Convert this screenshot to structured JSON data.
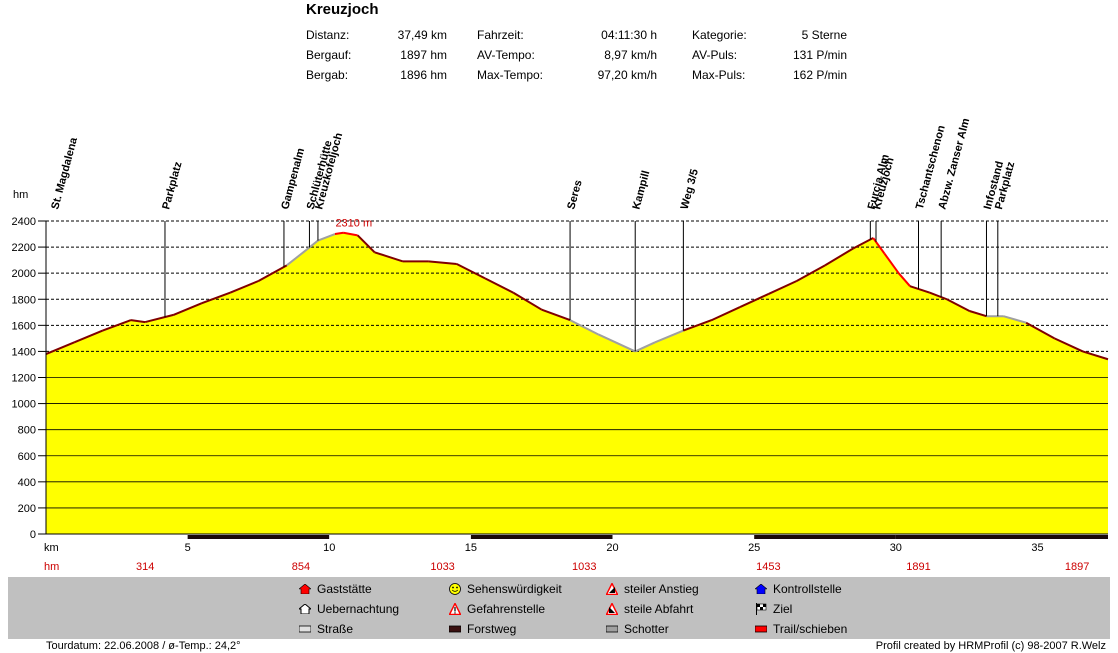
{
  "title": "Kreuzjoch",
  "stats": [
    {
      "label": "Distanz:",
      "value": "37,49 km"
    },
    {
      "label": "Bergauf:",
      "value": "1897 hm"
    },
    {
      "label": "Bergab:",
      "value": "1896 hm"
    },
    {
      "label": "Fahrzeit:",
      "value": "04:11:30 h"
    },
    {
      "label": "AV-Tempo:",
      "value": "8,97 km/h"
    },
    {
      "label": "Max-Tempo:",
      "value": "97,20 km/h"
    },
    {
      "label": "Kategorie:",
      "value": "5 Sterne"
    },
    {
      "label": "AV-Puls:",
      "value": "131 P/min"
    },
    {
      "label": "Max-Puls:",
      "value": "162 P/min"
    }
  ],
  "chart_data": {
    "type": "area",
    "ylabel": "hm",
    "xlabel": "km",
    "xlim": [
      0,
      37.49
    ],
    "ylim": [
      0,
      2400
    ],
    "yticks": [
      0,
      200,
      400,
      600,
      800,
      1000,
      1200,
      1400,
      1600,
      1800,
      2000,
      2200,
      2400
    ],
    "xticks": [
      5,
      10,
      15,
      20,
      25,
      30,
      35
    ],
    "grid_lines": [
      1400,
      1600,
      1800,
      2000,
      2200,
      2400
    ],
    "profile_x": [
      0,
      1,
      2,
      3,
      3.5,
      4.5,
      5.5,
      6.5,
      7.5,
      8.5,
      9.2,
      9.6,
      10.2,
      10.5,
      11,
      11.6,
      12.6,
      13.5,
      14.5,
      15.5,
      16.5,
      17.5,
      18.5,
      19.5,
      20.8,
      21.5,
      22.5,
      23.5,
      24.5,
      25.5,
      26.5,
      27.5,
      28.5,
      29.2,
      29.6,
      30.1,
      30.5,
      31.2,
      31.8,
      32.6,
      33.2,
      33.8,
      34.6,
      35.6,
      36.6,
      37.49
    ],
    "profile_y": [
      1380,
      1470,
      1560,
      1640,
      1625,
      1680,
      1770,
      1850,
      1940,
      2060,
      2180,
      2250,
      2300,
      2310,
      2290,
      2160,
      2090,
      2090,
      2070,
      1960,
      1850,
      1720,
      1640,
      1530,
      1400,
      1470,
      1560,
      1640,
      1740,
      1840,
      1940,
      2060,
      2190,
      2270,
      2150,
      2000,
      1900,
      1850,
      1800,
      1710,
      1670,
      1670,
      1620,
      1500,
      1400,
      1340
    ],
    "max_label": "2310 m",
    "max_at": [
      10.5,
      2310
    ],
    "waypoints": [
      {
        "name": "St. Magdalena",
        "km": 0
      },
      {
        "name": "Parkplatz",
        "km": 4.2
      },
      {
        "name": "Gampenalm",
        "km": 8.4
      },
      {
        "name": "Schlüterhütte",
        "km": 9.3
      },
      {
        "name": "Kreuzkofeljoch",
        "km": 9.6
      },
      {
        "name": "Seres",
        "km": 18.5
      },
      {
        "name": "Kampill",
        "km": 20.8
      },
      {
        "name": "Weg 3/5",
        "km": 22.5
      },
      {
        "name": "Furcia Alm",
        "km": 29.1
      },
      {
        "name": "Kreuzjoch",
        "km": 29.3
      },
      {
        "name": "Tschantschenon",
        "km": 30.8
      },
      {
        "name": "Abzw. Zanser Alm",
        "km": 31.6
      },
      {
        "name": "Infostand",
        "km": 33.2
      },
      {
        "name": "Parkplatz",
        "km": 33.6
      }
    ],
    "hm_row_label": "hm",
    "hm_row": [
      {
        "km": 3.5,
        "value": "314"
      },
      {
        "km": 9,
        "value": "854"
      },
      {
        "km": 14,
        "value": "1033"
      },
      {
        "km": 19,
        "value": "1033"
      },
      {
        "km": 25.5,
        "value": "1453"
      },
      {
        "km": 30.8,
        "value": "1891"
      },
      {
        "km": 36.4,
        "value": "1897"
      }
    ],
    "surface": [
      {
        "from": 0,
        "to": 5,
        "type": "Straße"
      },
      {
        "from": 5,
        "to": 10,
        "type": "Forstweg"
      },
      {
        "from": 10,
        "to": 15,
        "type": "Straße"
      },
      {
        "from": 15,
        "to": 20,
        "type": "Forstweg"
      },
      {
        "from": 20,
        "to": 25,
        "type": "Straße"
      },
      {
        "from": 25,
        "to": 30,
        "type": "Forstweg"
      },
      {
        "from": 30,
        "to": 37.49,
        "type": "Forstweg"
      }
    ],
    "colors": {
      "fill": "#ffff00",
      "line": "#800000",
      "trail": "#ff0000",
      "road": "#a0a0a0"
    }
  },
  "legend": [
    {
      "label": "Gaststätte",
      "icon": "house-red-icon"
    },
    {
      "label": "Uebernachtung",
      "icon": "house-outline-icon"
    },
    {
      "label": "Straße",
      "icon": "road-swatch-icon"
    },
    {
      "label": "Sehenswürdigkeit",
      "icon": "smiley-icon"
    },
    {
      "label": "Gefahrenstelle",
      "icon": "warning-icon"
    },
    {
      "label": "Forstweg",
      "icon": "forest-road-swatch-icon"
    },
    {
      "label": "steiler Anstieg",
      "icon": "steep-climb-icon"
    },
    {
      "label": "steile Abfahrt",
      "icon": "steep-descent-icon"
    },
    {
      "label": "Schotter",
      "icon": "gravel-swatch-icon"
    },
    {
      "label": "Kontrollstelle",
      "icon": "checkpoint-icon"
    },
    {
      "label": "Ziel",
      "icon": "finish-flag-icon"
    },
    {
      "label": "Trail/schieben",
      "icon": "trail-swatch-icon"
    }
  ],
  "footer": {
    "left": "Tourdatum: 22.06.2008  /  ø-Temp.: 24,2°",
    "right": "Profil created by HRMProfil (c) 98-2007 R.Welz"
  }
}
